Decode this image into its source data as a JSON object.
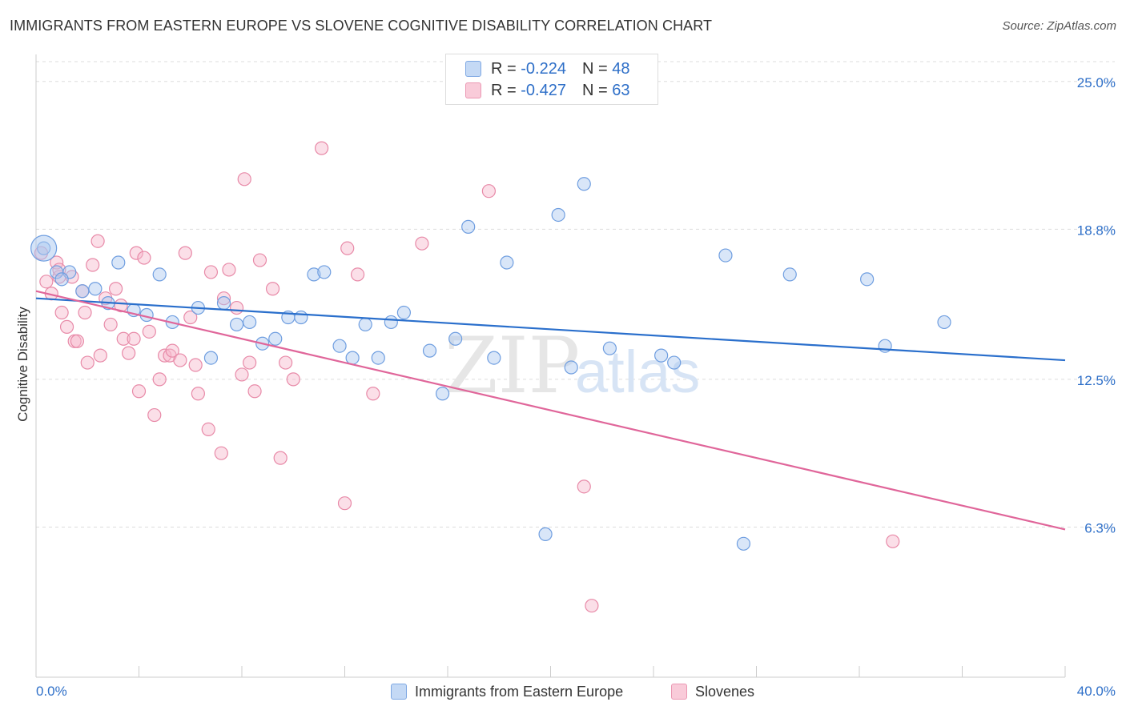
{
  "title": "IMMIGRANTS FROM EASTERN EUROPE VS SLOVENE COGNITIVE DISABILITY CORRELATION CHART",
  "source": "Source: ZipAtlas.com",
  "legend": {
    "r_label": "R =",
    "n_label": "N =",
    "series1": {
      "r": "-0.224",
      "n": "48"
    },
    "series2": {
      "r": "-0.427",
      "n": "63"
    }
  },
  "watermark": {
    "zip": "ZIP",
    "atlas": "atlas"
  },
  "colors": {
    "blue_fill": "#aac8f0",
    "blue_stroke": "#6f9ee0",
    "blue_line": "#2a6fcc",
    "pink_fill": "#f6b8cc",
    "pink_stroke": "#e88aa8",
    "pink_line": "#e0669a",
    "tick_label": "#2e6fc8",
    "grid": "#dddddd"
  },
  "chart_data": {
    "type": "scatter",
    "xlabel": "",
    "ylabel": "Cognitive Disability",
    "xlim": [
      0,
      40
    ],
    "ylim": [
      0,
      26
    ],
    "x_tick_labels": [
      "0.0%",
      "40.0%"
    ],
    "y_ticks": [
      6.3,
      12.5,
      18.8,
      25.0
    ],
    "y_tick_labels": [
      "6.3%",
      "12.5%",
      "18.8%",
      "25.0%"
    ],
    "grid": "horizontal dashed",
    "legend_position": "top-center",
    "series": [
      {
        "name": "Immigrants from Eastern Europe",
        "color": "#aac8f0",
        "trend": {
          "x": [
            0,
            40
          ],
          "y": [
            15.9,
            13.3
          ]
        },
        "points": [
          [
            0.3,
            18.0
          ],
          [
            0.8,
            17.0
          ],
          [
            1.3,
            17.0
          ],
          [
            1.8,
            16.2
          ],
          [
            2.3,
            16.3
          ],
          [
            2.8,
            15.7
          ],
          [
            3.2,
            17.4
          ],
          [
            3.8,
            15.4
          ],
          [
            4.3,
            15.2
          ],
          [
            4.8,
            16.9
          ],
          [
            5.3,
            14.9
          ],
          [
            6.3,
            15.5
          ],
          [
            6.8,
            13.4
          ],
          [
            7.3,
            15.7
          ],
          [
            7.8,
            14.8
          ],
          [
            8.3,
            14.9
          ],
          [
            8.8,
            14.0
          ],
          [
            9.3,
            14.2
          ],
          [
            9.8,
            15.1
          ],
          [
            10.3,
            15.1
          ],
          [
            10.8,
            16.9
          ],
          [
            11.2,
            17.0
          ],
          [
            11.8,
            13.9
          ],
          [
            12.3,
            13.4
          ],
          [
            12.8,
            14.8
          ],
          [
            13.3,
            13.4
          ],
          [
            13.8,
            14.9
          ],
          [
            14.3,
            15.3
          ],
          [
            15.3,
            13.7
          ],
          [
            15.8,
            11.9
          ],
          [
            16.3,
            14.2
          ],
          [
            16.8,
            18.9
          ],
          [
            17.8,
            13.4
          ],
          [
            18.3,
            17.4
          ],
          [
            19.8,
            6.0
          ],
          [
            20.3,
            19.4
          ],
          [
            20.8,
            13.0
          ],
          [
            21.3,
            20.7
          ],
          [
            22.3,
            13.8
          ],
          [
            24.3,
            13.5
          ],
          [
            24.8,
            13.2
          ],
          [
            26.8,
            17.7
          ],
          [
            29.3,
            16.9
          ],
          [
            32.3,
            16.7
          ],
          [
            33.0,
            13.9
          ],
          [
            35.3,
            14.9
          ],
          [
            27.5,
            5.6
          ],
          [
            1.0,
            16.7
          ]
        ]
      },
      {
        "name": "Slovenes",
        "color": "#f6b8cc",
        "trend": {
          "x": [
            0,
            40
          ],
          "y": [
            16.2,
            6.2
          ]
        },
        "points": [
          [
            0.2,
            17.8
          ],
          [
            0.4,
            16.6
          ],
          [
            0.6,
            16.1
          ],
          [
            0.8,
            17.4
          ],
          [
            0.9,
            16.8
          ],
          [
            1.0,
            15.3
          ],
          [
            1.2,
            14.7
          ],
          [
            1.4,
            16.8
          ],
          [
            1.5,
            14.1
          ],
          [
            1.6,
            14.1
          ],
          [
            1.8,
            16.2
          ],
          [
            1.9,
            15.3
          ],
          [
            2.0,
            13.2
          ],
          [
            2.2,
            17.3
          ],
          [
            2.4,
            18.3
          ],
          [
            2.5,
            13.5
          ],
          [
            2.7,
            15.9
          ],
          [
            2.9,
            14.8
          ],
          [
            3.1,
            16.3
          ],
          [
            3.3,
            15.6
          ],
          [
            3.4,
            14.2
          ],
          [
            3.6,
            13.6
          ],
          [
            3.8,
            14.2
          ],
          [
            3.9,
            17.8
          ],
          [
            4.0,
            12.0
          ],
          [
            4.2,
            17.6
          ],
          [
            4.4,
            14.5
          ],
          [
            4.6,
            11.0
          ],
          [
            4.8,
            12.5
          ],
          [
            5.0,
            13.5
          ],
          [
            5.2,
            13.5
          ],
          [
            5.3,
            13.7
          ],
          [
            5.6,
            13.3
          ],
          [
            5.8,
            17.8
          ],
          [
            6.0,
            15.1
          ],
          [
            6.2,
            13.1
          ],
          [
            6.3,
            11.9
          ],
          [
            6.7,
            10.4
          ],
          [
            6.8,
            17.0
          ],
          [
            7.2,
            9.4
          ],
          [
            7.3,
            15.9
          ],
          [
            7.5,
            17.1
          ],
          [
            7.8,
            15.5
          ],
          [
            8.0,
            12.7
          ],
          [
            8.1,
            20.9
          ],
          [
            8.3,
            13.2
          ],
          [
            8.5,
            12.0
          ],
          [
            8.7,
            17.5
          ],
          [
            9.2,
            16.3
          ],
          [
            9.5,
            9.2
          ],
          [
            9.7,
            13.2
          ],
          [
            10.0,
            12.5
          ],
          [
            11.1,
            22.2
          ],
          [
            12.0,
            7.3
          ],
          [
            12.1,
            18.0
          ],
          [
            12.5,
            16.9
          ],
          [
            13.1,
            11.9
          ],
          [
            15.0,
            18.2
          ],
          [
            17.6,
            20.4
          ],
          [
            21.3,
            8.0
          ],
          [
            21.6,
            3.0
          ],
          [
            33.3,
            5.7
          ],
          [
            0.9,
            17.1
          ]
        ]
      }
    ]
  }
}
